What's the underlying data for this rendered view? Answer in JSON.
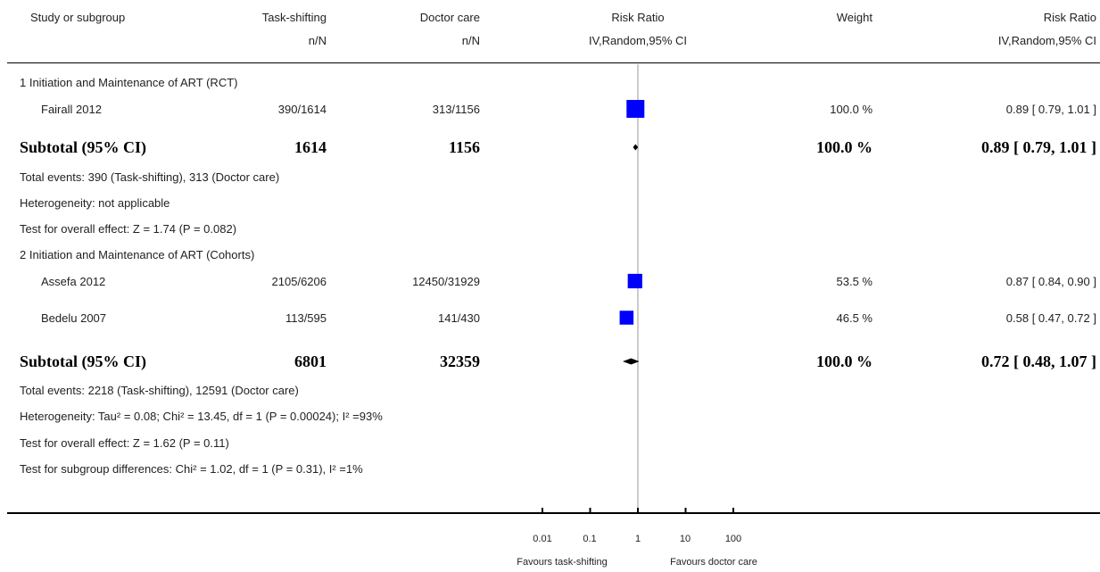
{
  "header": {
    "study": "Study or subgroup",
    "ts": "Task-shifting",
    "ts_sub": "n/N",
    "dc": "Doctor care",
    "dc_sub": "n/N",
    "rr": "Risk Ratio",
    "rr_sub": "IV,Random,95% CI",
    "weight": "Weight",
    "rr2": "Risk Ratio",
    "rr2_sub": "IV,Random,95% CI"
  },
  "groups": [
    {
      "title": "1 Initiation and Maintenance of ART (RCT)",
      "studies": [
        {
          "name": "Fairall 2012",
          "ts": "390/1614",
          "dc": "313/1156",
          "weight": "100.0 %",
          "ci": "0.89 [ 0.79, 1.01 ]"
        }
      ],
      "subtotal": {
        "label": "Subtotal (95% CI)",
        "ts": "1614",
        "dc": "1156",
        "weight": "100.0 %",
        "ci": "0.89 [ 0.79, 1.01 ]"
      },
      "notes": [
        "Total events: 390 (Task-shifting), 313 (Doctor care)",
        "Heterogeneity: not applicable",
        "Test for overall effect: Z = 1.74 (P = 0.082)"
      ]
    },
    {
      "title": "2 Initiation and Maintenance of ART (Cohorts)",
      "studies": [
        {
          "name": "Assefa 2012",
          "ts": "2105/6206",
          "dc": "12450/31929",
          "weight": "53.5 %",
          "ci": "0.87 [ 0.84, 0.90 ]"
        },
        {
          "name": "Bedelu 2007",
          "ts": "113/595",
          "dc": "141/430",
          "weight": "46.5 %",
          "ci": "0.58 [ 0.47, 0.72 ]"
        }
      ],
      "subtotal": {
        "label": "Subtotal (95% CI)",
        "ts": "6801",
        "dc": "32359",
        "weight": "100.0 %",
        "ci": "0.72 [ 0.48, 1.07 ]"
      },
      "notes": [
        "Total events: 2218 (Task-shifting), 12591 (Doctor care)",
        "Heterogeneity: Tau² = 0.08; Chi² = 13.45, df = 1 (P = 0.00024); I² =93%",
        "Test for overall effect: Z = 1.62 (P = 0.11)"
      ]
    }
  ],
  "subgroup_test": "Test for subgroup differences: Chi² = 1.02, df = 1 (P = 0.31), I² =1%",
  "axis": {
    "ticks": [
      "0.01",
      "0.1",
      "1",
      "10",
      "100"
    ],
    "favours_left": "Favours task-shifting",
    "favours_right": "Favours doctor care"
  },
  "colors": {
    "marker": "#0000ff",
    "line": "#000000",
    "rule": "#000000"
  },
  "chart_data": {
    "type": "forest",
    "scale": "log",
    "xlim": [
      0.01,
      100
    ],
    "reference": 1,
    "tick_values": [
      0.01,
      0.1,
      1,
      10,
      100
    ],
    "studies": [
      {
        "name": "Fairall 2012",
        "rr": 0.89,
        "lo": 0.79,
        "hi": 1.01,
        "weight": 100.0
      },
      {
        "name": "Assefa 2012",
        "rr": 0.87,
        "lo": 0.84,
        "hi": 0.9,
        "weight": 53.5
      },
      {
        "name": "Bedelu 2007",
        "rr": 0.58,
        "lo": 0.47,
        "hi": 0.72,
        "weight": 46.5
      }
    ],
    "subtotals": [
      {
        "label": "Subtotal (95% CI)",
        "group": 1,
        "rr": 0.89,
        "lo": 0.79,
        "hi": 1.01
      },
      {
        "label": "Subtotal (95% CI)",
        "group": 2,
        "rr": 0.72,
        "lo": 0.48,
        "hi": 1.07
      }
    ]
  }
}
